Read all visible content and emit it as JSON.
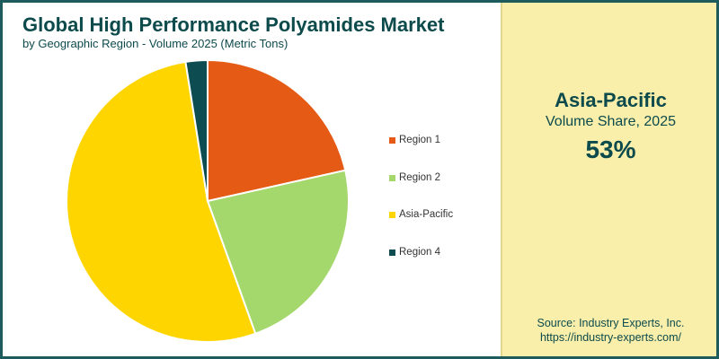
{
  "header": {
    "title": "Global High Performance Polyamides Market",
    "subtitle": "by Geographic Region - Volume 2025 (Metric Tons)"
  },
  "highlight": {
    "region": "Asia-Pacific",
    "metric": "Volume Share, 2025",
    "value": "53%"
  },
  "source": {
    "line1": "Source: Industry Experts, Inc.",
    "line2": "https://industry-experts.com/"
  },
  "colors": {
    "accent": "#0c4a4c",
    "panel_background": "#f9eeaa"
  },
  "chart_data": {
    "type": "pie",
    "title": "Global High Performance Polyamides Market",
    "subtitle": "by Geographic Region - Volume 2025 (Metric Tons)",
    "legend_position": "right",
    "start_angle": "12 o'clock",
    "direction": "clockwise",
    "slices": [
      {
        "label": "Region 1",
        "value": 21.5,
        "color": "#e55a14"
      },
      {
        "label": "Region 2",
        "value": 23.0,
        "color": "#a5d86c"
      },
      {
        "label": "Asia-Pacific",
        "value": 53.0,
        "color": "#ffd500"
      },
      {
        "label": "Region 4",
        "value": 2.5,
        "color": "#0d4d52"
      }
    ]
  }
}
